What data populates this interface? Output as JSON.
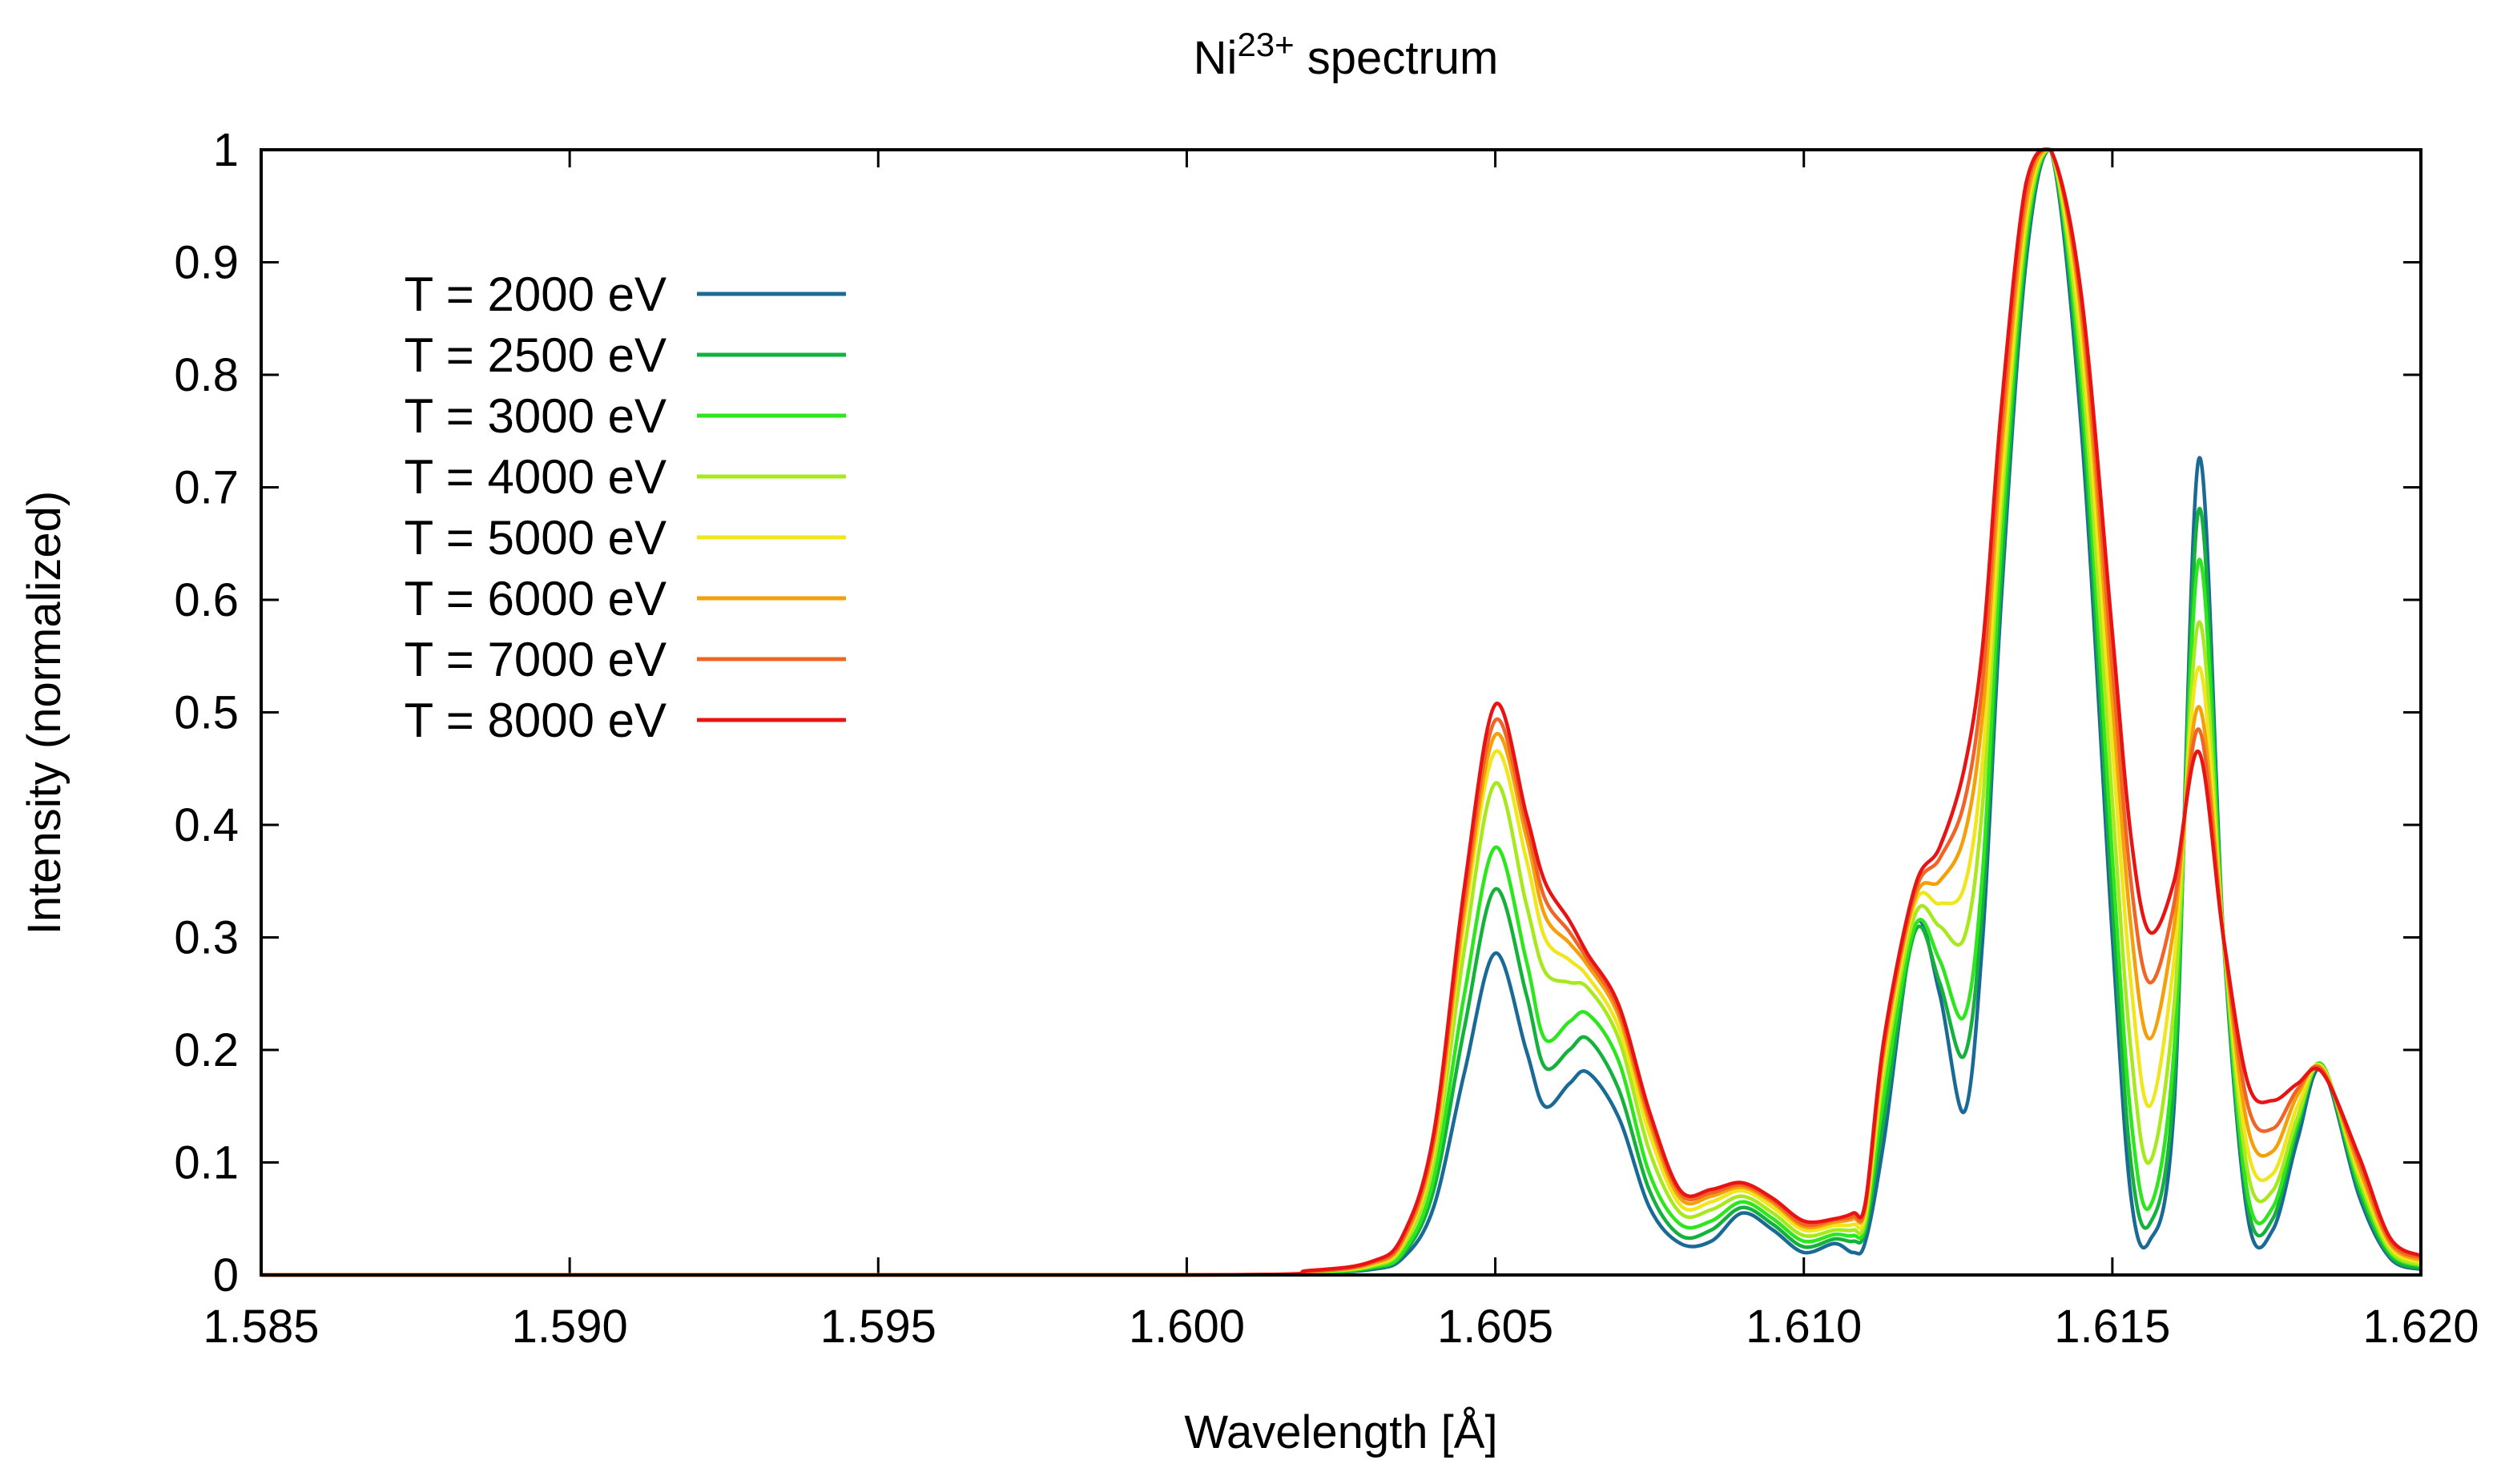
{
  "chart_data": {
    "type": "line",
    "title": "Ni",
    "title_sup": "23+",
    "title_rest": " spectrum",
    "xlabel": "Wavelength [Å]",
    "ylabel": "Intensity (normalized)",
    "xlim": [
      1.585,
      1.62
    ],
    "ylim": [
      0,
      1
    ],
    "x_ticks": [
      {
        "value": 1.585,
        "label": "1.585"
      },
      {
        "value": 1.59,
        "label": "1.590"
      },
      {
        "value": 1.595,
        "label": "1.595"
      },
      {
        "value": 1.6,
        "label": "1.600"
      },
      {
        "value": 1.605,
        "label": "1.605"
      },
      {
        "value": 1.61,
        "label": "1.610"
      },
      {
        "value": 1.615,
        "label": "1.615"
      },
      {
        "value": 1.62,
        "label": "1.620"
      }
    ],
    "y_ticks": [
      {
        "value": 0,
        "label": "0"
      },
      {
        "value": 0.1,
        "label": "0.1"
      },
      {
        "value": 0.2,
        "label": "0.2"
      },
      {
        "value": 0.3,
        "label": "0.3"
      },
      {
        "value": 0.4,
        "label": "0.4"
      },
      {
        "value": 0.5,
        "label": "0.5"
      },
      {
        "value": 0.6,
        "label": "0.6"
      },
      {
        "value": 0.7,
        "label": "0.7"
      },
      {
        "value": 0.8,
        "label": "0.8"
      },
      {
        "value": 0.9,
        "label": "0.9"
      },
      {
        "value": 1,
        "label": "1"
      }
    ],
    "legend_position": "top-left",
    "series": [
      {
        "name": "T = 2000 eV",
        "color": "#1a6a96",
        "x": [
          1.6,
          1.602,
          1.603,
          1.6035,
          1.604,
          1.6045,
          1.605,
          1.6055,
          1.6058,
          1.6062,
          1.6065,
          1.607,
          1.6075,
          1.608,
          1.6085,
          1.609,
          1.6095,
          1.61,
          1.6105,
          1.6108,
          1.611,
          1.6113,
          1.6118,
          1.6122,
          1.6126,
          1.6129,
          1.6132,
          1.6136,
          1.614,
          1.6145,
          1.615,
          1.6153,
          1.6156,
          1.616,
          1.6164,
          1.6168,
          1.6172,
          1.6176,
          1.618,
          1.6184,
          1.619,
          1.6195,
          1.62
        ],
        "y": [
          0.0,
          0.002,
          0.005,
          0.015,
          0.06,
          0.18,
          0.286,
          0.2,
          0.15,
          0.17,
          0.18,
          0.14,
          0.06,
          0.028,
          0.03,
          0.055,
          0.04,
          0.02,
          0.028,
          0.02,
          0.03,
          0.12,
          0.31,
          0.25,
          0.145,
          0.3,
          0.6,
          0.9,
          1.0,
          0.75,
          0.3,
          0.07,
          0.03,
          0.15,
          0.725,
          0.3,
          0.05,
          0.04,
          0.12,
          0.183,
          0.07,
          0.015,
          0.005
        ]
      },
      {
        "name": "T = 2500 eV",
        "color": "#14b23c",
        "x": [
          1.6,
          1.602,
          1.603,
          1.6035,
          1.604,
          1.6045,
          1.605,
          1.6055,
          1.6058,
          1.6062,
          1.6065,
          1.607,
          1.6075,
          1.608,
          1.6085,
          1.609,
          1.6095,
          1.61,
          1.6105,
          1.6108,
          1.611,
          1.6113,
          1.6118,
          1.6122,
          1.6126,
          1.6129,
          1.6132,
          1.6136,
          1.614,
          1.6145,
          1.615,
          1.6153,
          1.6156,
          1.616,
          1.6164,
          1.6168,
          1.6172,
          1.6176,
          1.618,
          1.6184,
          1.619,
          1.6195,
          1.62
        ],
        "y": [
          0.0,
          0.002,
          0.006,
          0.018,
          0.075,
          0.22,
          0.343,
          0.25,
          0.185,
          0.2,
          0.21,
          0.165,
          0.075,
          0.035,
          0.04,
          0.06,
          0.045,
          0.025,
          0.032,
          0.03,
          0.04,
          0.14,
          0.305,
          0.26,
          0.195,
          0.33,
          0.62,
          0.91,
          1.0,
          0.77,
          0.33,
          0.1,
          0.045,
          0.17,
          0.68,
          0.3,
          0.06,
          0.05,
          0.13,
          0.185,
          0.075,
          0.017,
          0.006
        ]
      },
      {
        "name": "T = 3000 eV",
        "color": "#2ee61e",
        "x": [
          1.6,
          1.602,
          1.603,
          1.6035,
          1.604,
          1.6045,
          1.605,
          1.6055,
          1.6058,
          1.6062,
          1.6065,
          1.607,
          1.6075,
          1.608,
          1.6085,
          1.609,
          1.6095,
          1.61,
          1.6105,
          1.6108,
          1.611,
          1.6113,
          1.6118,
          1.6122,
          1.6126,
          1.6129,
          1.6132,
          1.6136,
          1.614,
          1.6145,
          1.615,
          1.6153,
          1.6156,
          1.616,
          1.6164,
          1.6168,
          1.6172,
          1.6176,
          1.618,
          1.6184,
          1.619,
          1.6195,
          1.62
        ],
        "y": [
          0.0,
          0.002,
          0.007,
          0.02,
          0.085,
          0.25,
          0.38,
          0.28,
          0.21,
          0.225,
          0.232,
          0.19,
          0.09,
          0.045,
          0.048,
          0.065,
          0.05,
          0.03,
          0.036,
          0.035,
          0.045,
          0.16,
          0.31,
          0.28,
          0.23,
          0.36,
          0.65,
          0.92,
          1.0,
          0.79,
          0.37,
          0.14,
          0.06,
          0.2,
          0.635,
          0.3,
          0.07,
          0.06,
          0.135,
          0.187,
          0.08,
          0.02,
          0.008
        ]
      },
      {
        "name": "T = 4000 eV",
        "color": "#a8e81e",
        "x": [
          1.6,
          1.602,
          1.603,
          1.6035,
          1.604,
          1.6045,
          1.605,
          1.6055,
          1.6058,
          1.6062,
          1.6065,
          1.607,
          1.6075,
          1.608,
          1.6085,
          1.609,
          1.6095,
          1.61,
          1.6105,
          1.6108,
          1.611,
          1.6113,
          1.6118,
          1.6122,
          1.6126,
          1.6129,
          1.6132,
          1.6136,
          1.614,
          1.6145,
          1.615,
          1.6153,
          1.6156,
          1.616,
          1.6164,
          1.6168,
          1.6172,
          1.6176,
          1.618,
          1.6184,
          1.619,
          1.6195,
          1.62
        ],
        "y": [
          0.0,
          0.003,
          0.008,
          0.025,
          0.1,
          0.29,
          0.437,
          0.33,
          0.27,
          0.26,
          0.255,
          0.21,
          0.11,
          0.055,
          0.058,
          0.07,
          0.055,
          0.035,
          0.04,
          0.04,
          0.05,
          0.18,
          0.32,
          0.31,
          0.3,
          0.42,
          0.68,
          0.93,
          1.0,
          0.81,
          0.42,
          0.2,
          0.1,
          0.24,
          0.58,
          0.3,
          0.09,
          0.075,
          0.14,
          0.185,
          0.085,
          0.022,
          0.009
        ]
      },
      {
        "name": "T = 5000 eV",
        "color": "#f0e61e",
        "x": [
          1.6,
          1.602,
          1.603,
          1.6035,
          1.604,
          1.6045,
          1.605,
          1.6055,
          1.6058,
          1.6062,
          1.6065,
          1.607,
          1.6075,
          1.608,
          1.6085,
          1.609,
          1.6095,
          1.61,
          1.6105,
          1.6108,
          1.611,
          1.6113,
          1.6118,
          1.6122,
          1.6126,
          1.6129,
          1.6132,
          1.6136,
          1.614,
          1.6145,
          1.615,
          1.6153,
          1.6156,
          1.616,
          1.6164,
          1.6168,
          1.6172,
          1.6176,
          1.618,
          1.6184,
          1.619,
          1.6195,
          1.62
        ],
        "y": [
          0.0,
          0.003,
          0.009,
          0.028,
          0.11,
          0.315,
          0.465,
          0.37,
          0.3,
          0.28,
          0.265,
          0.22,
          0.125,
          0.062,
          0.065,
          0.075,
          0.06,
          0.04,
          0.044,
          0.045,
          0.055,
          0.19,
          0.33,
          0.33,
          0.345,
          0.46,
          0.7,
          0.94,
          1.0,
          0.83,
          0.47,
          0.26,
          0.15,
          0.28,
          0.54,
          0.3,
          0.11,
          0.09,
          0.15,
          0.185,
          0.09,
          0.025,
          0.011
        ]
      },
      {
        "name": "T = 6000 eV",
        "color": "#f5a00a",
        "x": [
          1.6,
          1.602,
          1.603,
          1.6035,
          1.604,
          1.6045,
          1.605,
          1.6055,
          1.6058,
          1.6062,
          1.6065,
          1.607,
          1.6075,
          1.608,
          1.6085,
          1.609,
          1.6095,
          1.61,
          1.6105,
          1.6108,
          1.611,
          1.6113,
          1.6118,
          1.6122,
          1.6126,
          1.6129,
          1.6132,
          1.6136,
          1.614,
          1.6145,
          1.615,
          1.6153,
          1.6156,
          1.616,
          1.6164,
          1.6168,
          1.6172,
          1.6176,
          1.618,
          1.6184,
          1.619,
          1.6195,
          1.62
        ],
        "y": [
          0.0,
          0.003,
          0.01,
          0.03,
          0.115,
          0.325,
          0.48,
          0.39,
          0.32,
          0.295,
          0.275,
          0.23,
          0.135,
          0.068,
          0.07,
          0.078,
          0.064,
          0.043,
          0.047,
          0.05,
          0.06,
          0.2,
          0.335,
          0.35,
          0.39,
          0.5,
          0.73,
          0.95,
          1.0,
          0.85,
          0.51,
          0.31,
          0.21,
          0.31,
          0.505,
          0.3,
          0.13,
          0.11,
          0.16,
          0.183,
          0.095,
          0.028,
          0.013
        ]
      },
      {
        "name": "T = 7000 eV",
        "color": "#f06428",
        "x": [
          1.6,
          1.602,
          1.603,
          1.6035,
          1.604,
          1.6045,
          1.605,
          1.6055,
          1.6058,
          1.6062,
          1.6065,
          1.607,
          1.6075,
          1.608,
          1.6085,
          1.609,
          1.6095,
          1.61,
          1.6105,
          1.6108,
          1.611,
          1.6113,
          1.6118,
          1.6122,
          1.6126,
          1.6129,
          1.6132,
          1.6136,
          1.614,
          1.6145,
          1.615,
          1.6153,
          1.6156,
          1.616,
          1.6164,
          1.6168,
          1.6172,
          1.6176,
          1.618,
          1.6184,
          1.619,
          1.6195,
          1.62
        ],
        "y": [
          0.0,
          0.003,
          0.011,
          0.032,
          0.12,
          0.335,
          0.493,
          0.4,
          0.335,
          0.305,
          0.28,
          0.235,
          0.14,
          0.072,
          0.073,
          0.08,
          0.066,
          0.045,
          0.049,
          0.052,
          0.062,
          0.205,
          0.34,
          0.37,
          0.42,
          0.53,
          0.75,
          0.96,
          1.0,
          0.86,
          0.54,
          0.35,
          0.26,
          0.33,
          0.485,
          0.3,
          0.15,
          0.13,
          0.165,
          0.182,
          0.1,
          0.03,
          0.015
        ]
      },
      {
        "name": "T = 8000 eV",
        "color": "#e81414",
        "x": [
          1.6,
          1.602,
          1.603,
          1.6035,
          1.604,
          1.6045,
          1.605,
          1.6055,
          1.6058,
          1.6062,
          1.6065,
          1.607,
          1.6075,
          1.608,
          1.6085,
          1.609,
          1.6095,
          1.61,
          1.6105,
          1.6108,
          1.611,
          1.6113,
          1.6118,
          1.6122,
          1.6126,
          1.6129,
          1.6132,
          1.6136,
          1.614,
          1.6145,
          1.615,
          1.6153,
          1.6156,
          1.616,
          1.6164,
          1.6168,
          1.6172,
          1.6176,
          1.618,
          1.6184,
          1.619,
          1.6195,
          1.62
        ],
        "y": [
          0.0,
          0.004,
          0.012,
          0.035,
          0.125,
          0.345,
          0.507,
          0.41,
          0.35,
          0.315,
          0.285,
          0.24,
          0.145,
          0.075,
          0.076,
          0.082,
          0.068,
          0.048,
          0.05,
          0.055,
          0.065,
          0.21,
          0.345,
          0.38,
          0.45,
          0.56,
          0.77,
          0.97,
          1.0,
          0.87,
          0.57,
          0.39,
          0.305,
          0.35,
          0.465,
          0.3,
          0.17,
          0.155,
          0.17,
          0.18,
          0.105,
          0.033,
          0.017
        ]
      }
    ]
  }
}
